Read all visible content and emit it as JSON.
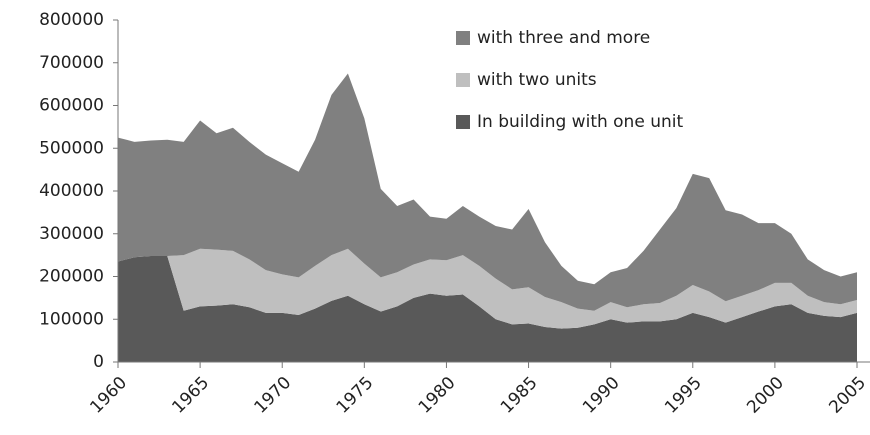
{
  "chart_data": {
    "type": "stacked-area",
    "x": [
      1960,
      1961,
      1962,
      1963,
      1964,
      1965,
      1966,
      1967,
      1968,
      1969,
      1970,
      1971,
      1972,
      1973,
      1974,
      1975,
      1976,
      1977,
      1978,
      1979,
      1980,
      1981,
      1982,
      1983,
      1984,
      1985,
      1986,
      1987,
      1988,
      1989,
      1990,
      1991,
      1992,
      1993,
      1994,
      1995,
      1996,
      1997,
      1998,
      1999,
      2000,
      2001,
      2002,
      2003,
      2004,
      2005
    ],
    "series": [
      {
        "name": "In building with one unit",
        "color": "#595959",
        "values": [
          235000,
          245000,
          248000,
          248000,
          120000,
          130000,
          132000,
          135000,
          128000,
          115000,
          115000,
          110000,
          125000,
          143000,
          155000,
          135000,
          118000,
          130000,
          150000,
          160000,
          155000,
          158000,
          130000,
          100000,
          88000,
          90000,
          82000,
          78000,
          80000,
          88000,
          100000,
          92000,
          95000,
          95000,
          100000,
          115000,
          105000,
          92000,
          105000,
          118000,
          130000,
          135000,
          115000,
          108000,
          105000,
          115000
        ]
      },
      {
        "name": "with two units",
        "color": "#bfbfbf",
        "values": [
          0,
          0,
          0,
          0,
          130000,
          135000,
          131000,
          125000,
          112000,
          100000,
          90000,
          88000,
          100000,
          107000,
          110000,
          95000,
          80000,
          80000,
          78000,
          80000,
          83000,
          92000,
          95000,
          95000,
          82000,
          85000,
          70000,
          62000,
          45000,
          32000,
          40000,
          36000,
          40000,
          43000,
          55000,
          65000,
          60000,
          50000,
          50000,
          50000,
          55000,
          50000,
          40000,
          32000,
          30000,
          30000
        ]
      },
      {
        "name": "with three and more",
        "color": "#808080",
        "values": [
          290000,
          270000,
          270000,
          272000,
          265000,
          300000,
          272000,
          288000,
          275000,
          270000,
          260000,
          247000,
          295000,
          375000,
          410000,
          340000,
          207000,
          155000,
          152000,
          100000,
          97000,
          115000,
          115000,
          123000,
          140000,
          183000,
          128000,
          85000,
          65000,
          62000,
          70000,
          92000,
          125000,
          172000,
          205000,
          260000,
          265000,
          213000,
          190000,
          157000,
          140000,
          115000,
          85000,
          75000,
          65000,
          65000
        ]
      }
    ],
    "xlim": [
      1960,
      2005
    ],
    "xticks": [
      1960,
      1965,
      1970,
      1975,
      1980,
      1985,
      1990,
      1995,
      2000,
      2005
    ],
    "ylim": [
      0,
      800000
    ],
    "yticks": [
      0,
      100000,
      200000,
      300000,
      400000,
      500000,
      600000,
      700000,
      800000
    ],
    "legend": "top-right"
  }
}
